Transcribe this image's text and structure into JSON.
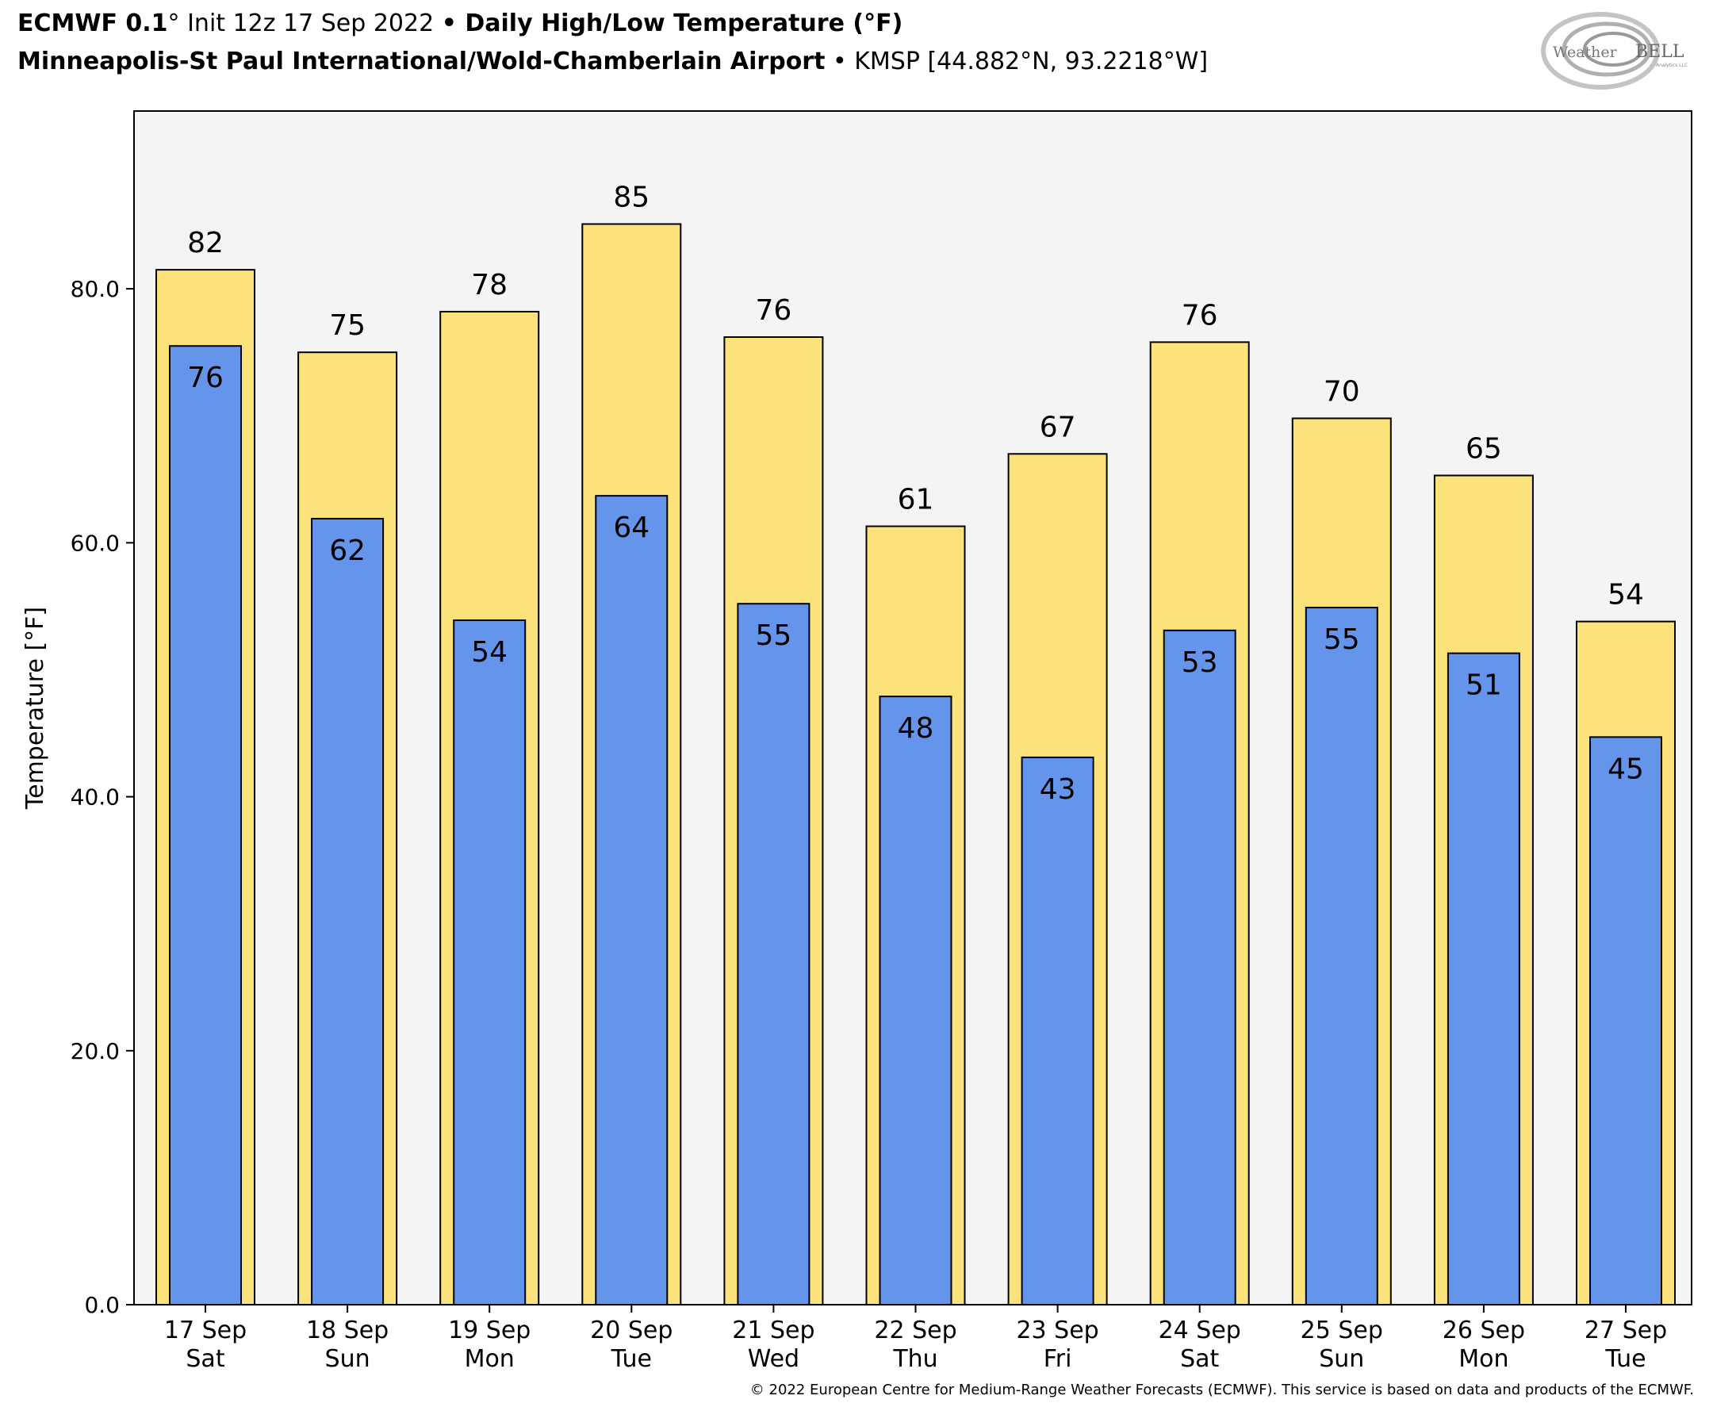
{
  "header": {
    "model": "ECMWF 0.1",
    "degree": "°",
    "init": " Init 12z 17 Sep 2022 ",
    "bullet": "•",
    "product": " Daily High/Low Temperature (°F)",
    "station_name": "Minneapolis-St Paul International/Wold-Chamberlain Airport",
    "station_info": " KMSP [44.882°N, 93.2218°W]"
  },
  "logo": {
    "text_left": "Weather",
    "text_right": "BELL",
    "subtext": "Analytics LLC"
  },
  "credit": "© 2022 European Centre for Medium-Range Weather Forecasts (ECMWF). This service is based on data and products of the ECMWF.",
  "colors": {
    "high": "#fbe27a",
    "low": "#6495ea",
    "plot_bg": "#f4f4f5"
  },
  "chart_data": {
    "type": "bar",
    "ylabel": "Temperature [°F]",
    "ylim": [
      0,
      94
    ],
    "yticks": [
      0,
      20,
      40,
      60,
      80
    ],
    "ytick_labels": [
      "0.0",
      "20.0",
      "40.0",
      "60.0",
      "80.0"
    ],
    "categories": [
      "17 Sep",
      "18 Sep",
      "19 Sep",
      "20 Sep",
      "21 Sep",
      "22 Sep",
      "23 Sep",
      "24 Sep",
      "25 Sep",
      "26 Sep",
      "27 Sep"
    ],
    "weekdays": [
      "Sat",
      "Sun",
      "Mon",
      "Tue",
      "Wed",
      "Thu",
      "Fri",
      "Sat",
      "Sun",
      "Mon",
      "Tue"
    ],
    "series": [
      {
        "name": "High",
        "values": [
          81.5,
          75.0,
          78.2,
          85.1,
          76.2,
          61.3,
          67.0,
          75.8,
          69.8,
          65.3,
          53.8
        ],
        "labels": [
          "82",
          "75",
          "78",
          "85",
          "76",
          "61",
          "67",
          "76",
          "70",
          "65",
          "54"
        ]
      },
      {
        "name": "Low",
        "values": [
          75.5,
          61.9,
          53.9,
          63.7,
          55.2,
          47.9,
          43.1,
          53.1,
          54.9,
          51.3,
          44.7
        ],
        "labels": [
          "76",
          "62",
          "54",
          "64",
          "55",
          "48",
          "43",
          "53",
          "55",
          "51",
          "45"
        ]
      }
    ],
    "grid": false,
    "legend": "none"
  }
}
